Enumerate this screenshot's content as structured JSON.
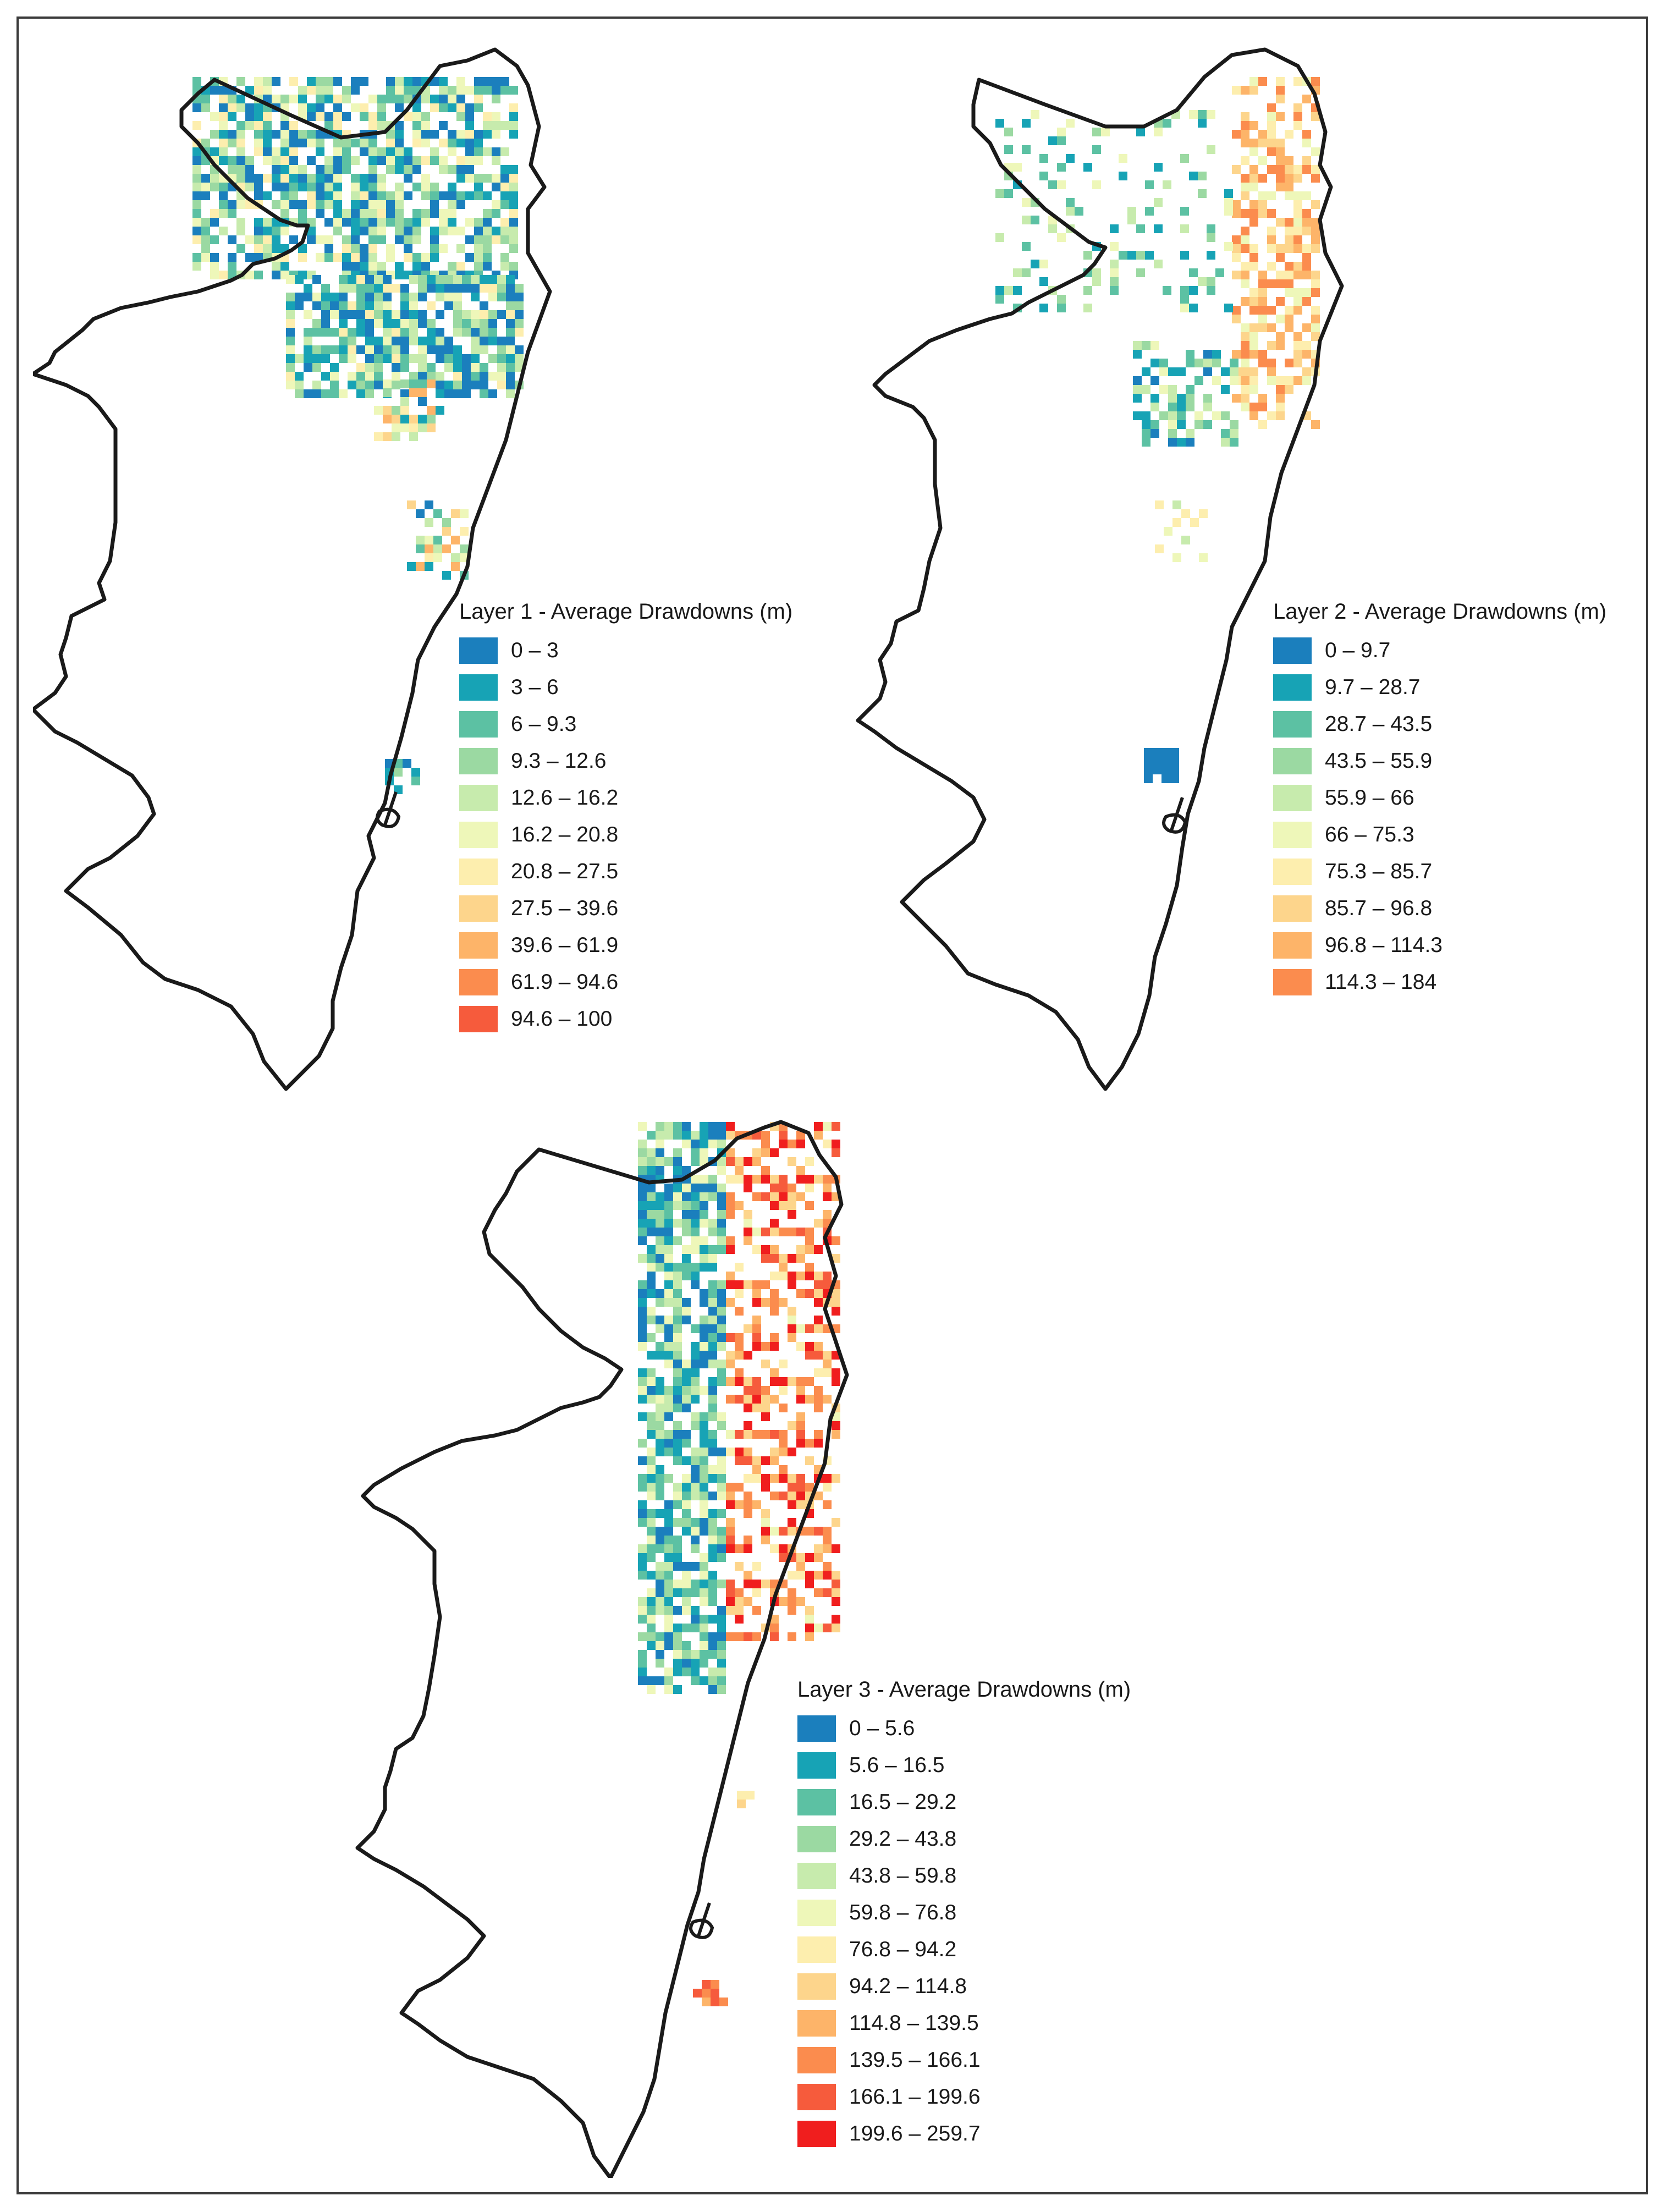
{
  "maps": [
    {
      "id": "layer1",
      "legend_title": "Layer 1 - Average Drawdowns  (m)",
      "classes": [
        {
          "label": "0 – 3",
          "color": "#1b7fbd"
        },
        {
          "label": "3 – 6",
          "color": "#17a3b5"
        },
        {
          "label": "6 – 9.3",
          "color": "#5cc1a3"
        },
        {
          "label": "9.3 – 12.6",
          "color": "#9bd9a2"
        },
        {
          "label": "12.6 – 16.2",
          "color": "#c7ebad"
        },
        {
          "label": "16.2 – 20.8",
          "color": "#eef7b9"
        },
        {
          "label": "20.8 – 27.5",
          "color": "#fdeeae"
        },
        {
          "label": "27.5 – 39.6",
          "color": "#fdd58c"
        },
        {
          "label": "39.6 – 61.9",
          "color": "#fdb469"
        },
        {
          "label": "61.9 – 94.6",
          "color": "#fb8c4e"
        },
        {
          "label": "94.6 – 100",
          "color": "#f65b3c"
        }
      ]
    },
    {
      "id": "layer2",
      "legend_title": "Layer 2 - Average Drawdowns  (m)",
      "classes": [
        {
          "label": "0 – 9.7",
          "color": "#1b7fbd"
        },
        {
          "label": "9.7 – 28.7",
          "color": "#17a3b5"
        },
        {
          "label": "28.7 – 43.5",
          "color": "#5cc1a3"
        },
        {
          "label": "43.5 – 55.9",
          "color": "#9bd9a2"
        },
        {
          "label": "55.9 – 66",
          "color": "#c7ebad"
        },
        {
          "label": "66 – 75.3",
          "color": "#eef7b9"
        },
        {
          "label": "75.3 – 85.7",
          "color": "#fdeeae"
        },
        {
          "label": "85.7 – 96.8",
          "color": "#fdd58c"
        },
        {
          "label": "96.8 – 114.3",
          "color": "#fdb469"
        },
        {
          "label": "114.3 – 184",
          "color": "#fb8c4e"
        }
      ]
    },
    {
      "id": "layer3",
      "legend_title": "Layer 3 - Average Drawdowns  (m)",
      "classes": [
        {
          "label": "0 – 5.6",
          "color": "#1b7fbd"
        },
        {
          "label": "5.6 – 16.5",
          "color": "#17a3b5"
        },
        {
          "label": "16.5 – 29.2",
          "color": "#5cc1a3"
        },
        {
          "label": "29.2 – 43.8",
          "color": "#9bd9a2"
        },
        {
          "label": "43.8 – 59.8",
          "color": "#c7ebad"
        },
        {
          "label": "59.8 – 76.8",
          "color": "#eef7b9"
        },
        {
          "label": "76.8 – 94.2",
          "color": "#fdeeae"
        },
        {
          "label": "94.2 – 114.8",
          "color": "#fdd58c"
        },
        {
          "label": "114.8 – 139.5",
          "color": "#fdb469"
        },
        {
          "label": "139.5 – 166.1",
          "color": "#fb8c4e"
        },
        {
          "label": "166.1 – 199.6",
          "color": "#f65b3c"
        },
        {
          "label": "199.6 – 259.7",
          "color": "#f01e1e"
        }
      ]
    }
  ]
}
